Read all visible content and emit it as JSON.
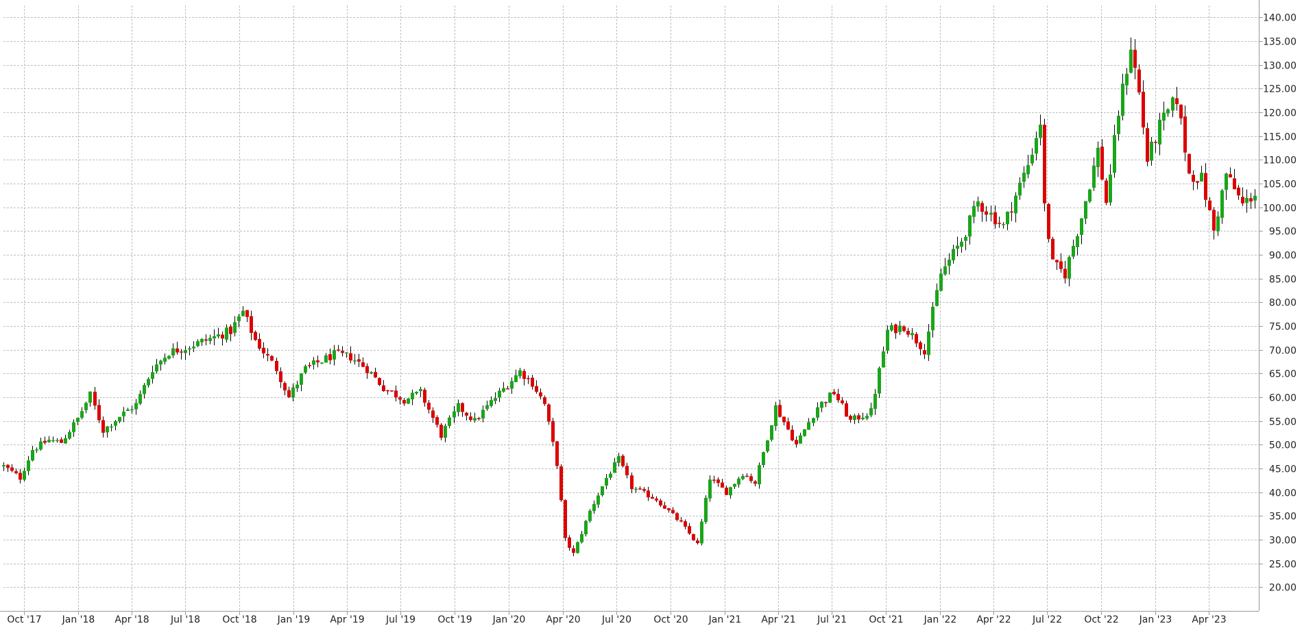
{
  "chart_data": {
    "type": "candlestick",
    "title": "",
    "xlabel": "",
    "ylabel": "",
    "ylim": [
      15,
      142.5
    ],
    "y_ticks": [
      20,
      25,
      30,
      35,
      40,
      45,
      50,
      55,
      60,
      65,
      70,
      75,
      80,
      85,
      90,
      95,
      100,
      105,
      110,
      115,
      120,
      125,
      130,
      135,
      140
    ],
    "y_axis_side": "right",
    "x_range": [
      "2017-08-27",
      "2023-06-25"
    ],
    "x_ticks": [
      {
        "date": "2017-10-01",
        "label": "Oct '17"
      },
      {
        "date": "2018-01-01",
        "label": "Jan '18"
      },
      {
        "date": "2018-04-01",
        "label": "Apr '18"
      },
      {
        "date": "2018-07-01",
        "label": "Jul '18"
      },
      {
        "date": "2018-10-01",
        "label": "Oct '18"
      },
      {
        "date": "2019-01-01",
        "label": "Jan '19"
      },
      {
        "date": "2019-04-01",
        "label": "Apr '19"
      },
      {
        "date": "2019-07-01",
        "label": "Jul '19"
      },
      {
        "date": "2019-10-01",
        "label": "Oct '19"
      },
      {
        "date": "2020-01-01",
        "label": "Jan '20"
      },
      {
        "date": "2020-04-01",
        "label": "Apr '20"
      },
      {
        "date": "2020-07-01",
        "label": "Jul '20"
      },
      {
        "date": "2020-10-01",
        "label": "Oct '20"
      },
      {
        "date": "2021-01-01",
        "label": "Jan '21"
      },
      {
        "date": "2021-04-01",
        "label": "Apr '21"
      },
      {
        "date": "2021-07-01",
        "label": "Jul '21"
      },
      {
        "date": "2021-10-01",
        "label": "Oct '21"
      },
      {
        "date": "2022-01-01",
        "label": "Jan '22"
      },
      {
        "date": "2022-04-01",
        "label": "Apr '22"
      },
      {
        "date": "2022-07-01",
        "label": "Jul '22"
      },
      {
        "date": "2022-10-01",
        "label": "Oct '22"
      },
      {
        "date": "2023-01-01",
        "label": "Jan '23"
      },
      {
        "date": "2023-04-01",
        "label": "Apr '23"
      }
    ],
    "grid": true,
    "legend": "none",
    "interval": "weekly",
    "up_color": "#1aa51a",
    "down_color": "#dd0000",
    "wick_color": "#000000",
    "grid_color": "#bdbdbd",
    "axis_color": "#999999",
    "anchors": [
      {
        "date": "2017-08-27",
        "price": 45.5
      },
      {
        "date": "2017-09-24",
        "price": 43.0
      },
      {
        "date": "2017-10-15",
        "price": 49.0
      },
      {
        "date": "2017-11-12",
        "price": 51.0
      },
      {
        "date": "2017-12-03",
        "price": 50.5
      },
      {
        "date": "2017-12-31",
        "price": 55.5
      },
      {
        "date": "2018-01-21",
        "price": 60.5
      },
      {
        "date": "2018-02-11",
        "price": 53.0
      },
      {
        "date": "2018-03-11",
        "price": 56.0
      },
      {
        "date": "2018-04-08",
        "price": 58.5
      },
      {
        "date": "2018-05-06",
        "price": 66.0
      },
      {
        "date": "2018-06-03",
        "price": 69.5
      },
      {
        "date": "2018-07-01",
        "price": 70.5
      },
      {
        "date": "2018-08-05",
        "price": 72.0
      },
      {
        "date": "2018-09-16",
        "price": 74.0
      },
      {
        "date": "2018-10-07",
        "price": 78.0
      },
      {
        "date": "2018-10-28",
        "price": 72.0
      },
      {
        "date": "2018-12-02",
        "price": 66.0
      },
      {
        "date": "2018-12-23",
        "price": 60.0
      },
      {
        "date": "2019-01-20",
        "price": 66.0
      },
      {
        "date": "2019-03-10",
        "price": 69.0
      },
      {
        "date": "2019-04-07",
        "price": 68.5
      },
      {
        "date": "2019-05-05",
        "price": 66.0
      },
      {
        "date": "2019-06-02",
        "price": 62.0
      },
      {
        "date": "2019-07-07",
        "price": 59.5
      },
      {
        "date": "2019-08-04",
        "price": 61.0
      },
      {
        "date": "2019-09-08",
        "price": 52.0
      },
      {
        "date": "2019-10-06",
        "price": 58.0
      },
      {
        "date": "2019-11-03",
        "price": 55.0
      },
      {
        "date": "2019-12-01",
        "price": 59.0
      },
      {
        "date": "2020-01-19",
        "price": 65.5
      },
      {
        "date": "2020-02-09",
        "price": 63.0
      },
      {
        "date": "2020-03-01",
        "price": 58.5
      },
      {
        "date": "2020-03-22",
        "price": 46.0
      },
      {
        "date": "2020-04-05",
        "price": 30.0
      },
      {
        "date": "2020-04-19",
        "price": 27.0
      },
      {
        "date": "2020-05-17",
        "price": 36.0
      },
      {
        "date": "2020-06-14",
        "price": 43.0
      },
      {
        "date": "2020-07-05",
        "price": 47.0
      },
      {
        "date": "2020-07-26",
        "price": 41.0
      },
      {
        "date": "2020-09-06",
        "price": 38.5
      },
      {
        "date": "2020-10-18",
        "price": 33.5
      },
      {
        "date": "2020-11-15",
        "price": 29.0
      },
      {
        "date": "2020-12-06",
        "price": 43.0
      },
      {
        "date": "2021-01-03",
        "price": 40.0
      },
      {
        "date": "2021-01-31",
        "price": 44.0
      },
      {
        "date": "2021-02-21",
        "price": 42.0
      },
      {
        "date": "2021-03-28",
        "price": 58.0
      },
      {
        "date": "2021-05-02",
        "price": 50.0
      },
      {
        "date": "2021-06-06",
        "price": 58.0
      },
      {
        "date": "2021-07-04",
        "price": 61.0
      },
      {
        "date": "2021-08-01",
        "price": 55.0
      },
      {
        "date": "2021-09-05",
        "price": 57.0
      },
      {
        "date": "2021-10-03",
        "price": 74.0
      },
      {
        "date": "2021-10-31",
        "price": 75.0
      },
      {
        "date": "2021-12-05",
        "price": 70.0
      },
      {
        "date": "2022-01-02",
        "price": 86.0
      },
      {
        "date": "2022-02-06",
        "price": 93.0
      },
      {
        "date": "2022-03-06",
        "price": 101.0
      },
      {
        "date": "2022-04-17",
        "price": 96.0
      },
      {
        "date": "2022-05-29",
        "price": 109.0
      },
      {
        "date": "2022-06-19",
        "price": 118.0
      },
      {
        "date": "2022-06-26",
        "price": 100.0
      },
      {
        "date": "2022-07-10",
        "price": 88.0
      },
      {
        "date": "2022-07-31",
        "price": 86.0
      },
      {
        "date": "2022-08-28",
        "price": 98.0
      },
      {
        "date": "2022-09-25",
        "price": 112.0
      },
      {
        "date": "2022-10-09",
        "price": 101.0
      },
      {
        "date": "2022-10-30",
        "price": 120.0
      },
      {
        "date": "2022-11-20",
        "price": 134.0
      },
      {
        "date": "2022-12-04",
        "price": 124.0
      },
      {
        "date": "2022-12-18",
        "price": 110.0
      },
      {
        "date": "2023-01-08",
        "price": 117.0
      },
      {
        "date": "2023-02-05",
        "price": 123.0
      },
      {
        "date": "2023-02-26",
        "price": 107.0
      },
      {
        "date": "2023-03-19",
        "price": 106.0
      },
      {
        "date": "2023-04-09",
        "price": 95.0
      },
      {
        "date": "2023-04-30",
        "price": 107.0
      },
      {
        "date": "2023-05-28",
        "price": 100.5
      },
      {
        "date": "2023-06-18",
        "price": 103.0
      }
    ]
  },
  "colors": {
    "background": "#ffffff",
    "text": "#222222"
  }
}
